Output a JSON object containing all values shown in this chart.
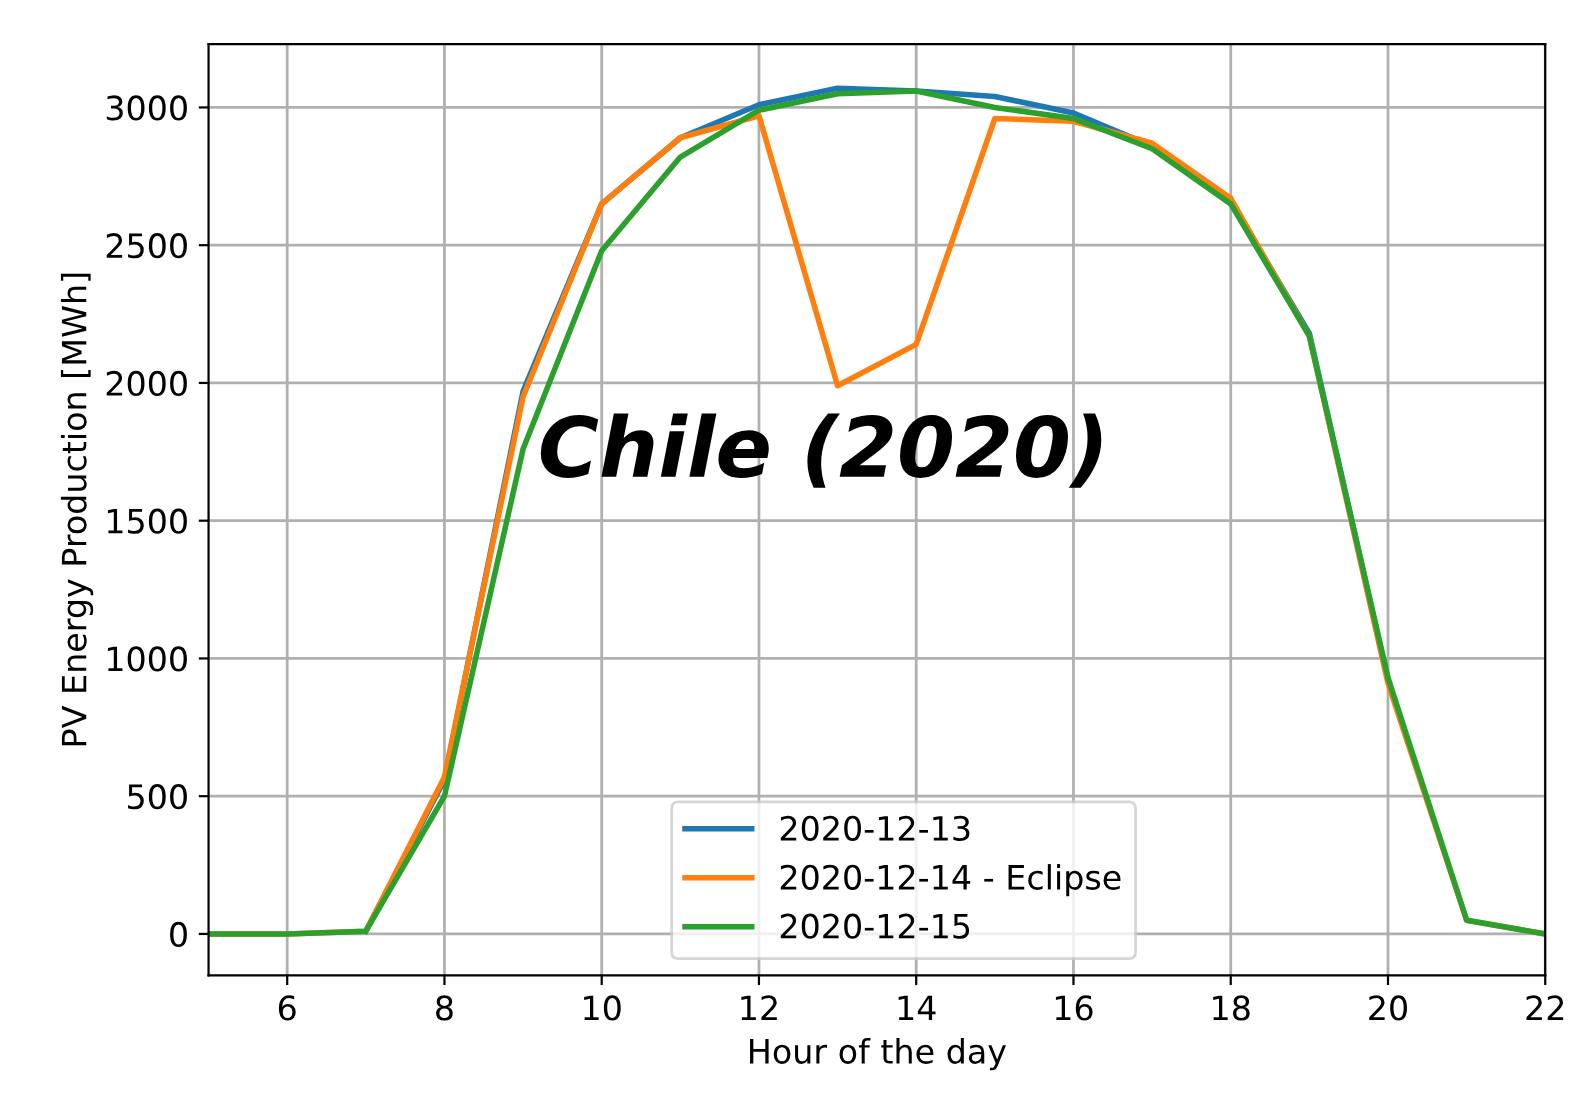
{
  "chart_data": {
    "type": "line",
    "xlabel": "Hour of the day",
    "ylabel": "PV Energy Production [MWh]",
    "annotations": [
      "Chile (2020)"
    ],
    "x": [
      5,
      6,
      7,
      8,
      9,
      10,
      11,
      12,
      13,
      14,
      15,
      16,
      17,
      18,
      19,
      20,
      21,
      22
    ],
    "series": [
      {
        "name": "2020-12-13",
        "color": "#1f77b4",
        "values": [
          null,
          null,
          10,
          560,
          1970,
          2650,
          2890,
          3010,
          3070,
          3060,
          3040,
          2980,
          2860,
          2660,
          2180,
          920,
          null,
          null
        ]
      },
      {
        "name": "2020-12-14 - Eclipse",
        "color": "#ff7f0e",
        "values": [
          0,
          0,
          10,
          570,
          1950,
          2650,
          2890,
          2970,
          1990,
          2140,
          2960,
          2950,
          2870,
          2670,
          2170,
          910,
          50,
          0
        ]
      },
      {
        "name": "2020-12-15",
        "color": "#2ca02c",
        "values": [
          0,
          0,
          10,
          500,
          1760,
          2480,
          2820,
          2990,
          3050,
          3060,
          3000,
          2960,
          2850,
          2650,
          2170,
          930,
          50,
          0
        ]
      }
    ],
    "xlim": [
      5,
      22
    ],
    "ylim": [
      -150,
      3230
    ],
    "xticks": [
      6,
      8,
      10,
      12,
      14,
      16,
      18,
      20,
      22
    ],
    "yticks": [
      0,
      500,
      1000,
      1500,
      2000,
      2500,
      3000
    ],
    "grid": true,
    "legend": "bottom",
    "line_style": "solid",
    "marker": "none"
  }
}
